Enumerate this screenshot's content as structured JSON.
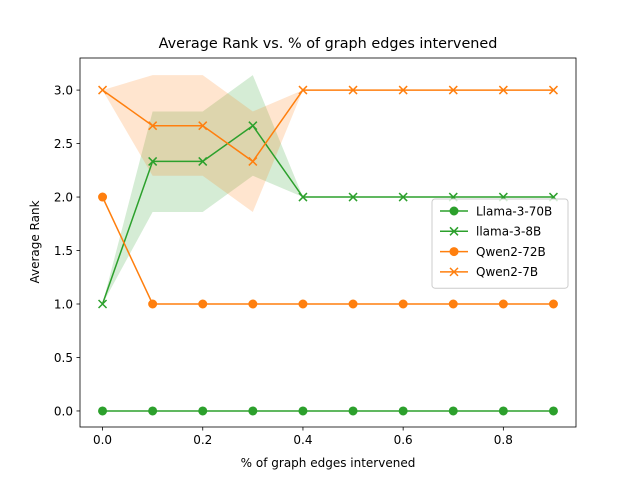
{
  "chart_data": {
    "type": "line",
    "title": "Average Rank vs. % of graph edges intervened",
    "xlabel": "% of graph edges intervened",
    "ylabel": "Average Rank",
    "x": [
      0.0,
      0.1,
      0.2,
      0.3,
      0.4,
      0.5,
      0.6,
      0.7,
      0.8,
      0.9
    ],
    "xlim": [
      -0.045,
      0.945
    ],
    "ylim": [
      -0.15,
      3.3
    ],
    "xticks": [
      0.0,
      0.2,
      0.4,
      0.6,
      0.8
    ],
    "xtick_labels": [
      "0.0",
      "0.2",
      "0.4",
      "0.6",
      "0.8"
    ],
    "yticks": [
      0.0,
      0.5,
      1.0,
      1.5,
      2.0,
      2.5,
      3.0
    ],
    "ytick_labels": [
      "0.0",
      "0.5",
      "1.0",
      "1.5",
      "2.0",
      "2.5",
      "3.0"
    ],
    "legend_position": "center-right",
    "series": [
      {
        "name": "Llama-3-70B",
        "color": "#2ca02c",
        "marker": "circle",
        "values": [
          0,
          0,
          0,
          0,
          0,
          0,
          0,
          0,
          0,
          0
        ]
      },
      {
        "name": "llama-3-8B",
        "color": "#2ca02c",
        "marker": "x",
        "values": [
          1.0,
          2.333,
          2.333,
          2.667,
          2.0,
          2.0,
          2.0,
          2.0,
          2.0,
          2.0
        ],
        "band_lower": [
          1.0,
          1.86,
          1.86,
          2.2,
          2.0,
          2.0,
          2.0,
          2.0,
          2.0,
          2.0
        ],
        "band_upper": [
          1.0,
          2.8,
          2.8,
          3.14,
          2.0,
          2.0,
          2.0,
          2.0,
          2.0,
          2.0
        ]
      },
      {
        "name": "Qwen2-72B",
        "color": "#ff7f0e",
        "marker": "circle",
        "values": [
          2.0,
          1.0,
          1.0,
          1.0,
          1.0,
          1.0,
          1.0,
          1.0,
          1.0,
          1.0
        ]
      },
      {
        "name": "Qwen2-7B",
        "color": "#ff7f0e",
        "marker": "x",
        "values": [
          3.0,
          2.667,
          2.667,
          2.333,
          3.0,
          3.0,
          3.0,
          3.0,
          3.0,
          3.0
        ],
        "band_lower": [
          3.0,
          2.2,
          2.2,
          1.86,
          3.0,
          3.0,
          3.0,
          3.0,
          3.0,
          3.0
        ],
        "band_upper": [
          3.0,
          3.14,
          3.14,
          2.8,
          3.0,
          3.0,
          3.0,
          3.0,
          3.0,
          3.0
        ]
      }
    ]
  }
}
